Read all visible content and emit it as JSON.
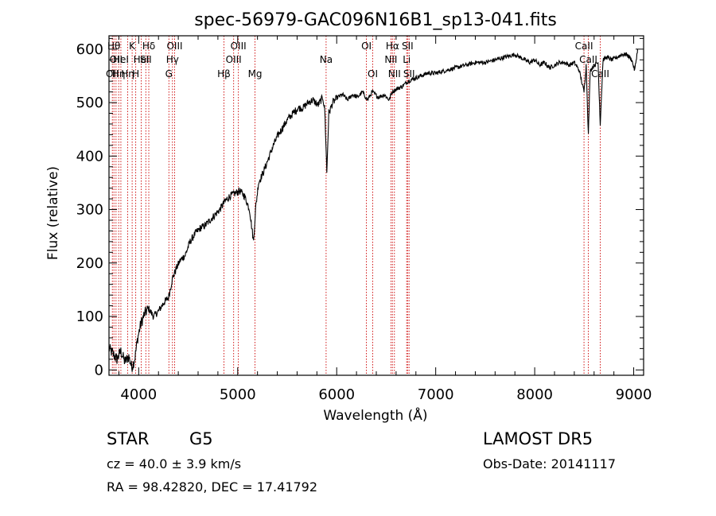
{
  "chart_data": {
    "type": "line",
    "title": "spec-56979-GAC096N16B1_sp13-041.fits",
    "xlabel": "Wavelength (Å)",
    "ylabel": "Flux (relative)",
    "xlim": [
      3700,
      9100
    ],
    "ylim": [
      -10,
      625
    ],
    "xticks": [
      4000,
      5000,
      6000,
      7000,
      8000,
      9000
    ],
    "yticks": [
      0,
      100,
      200,
      300,
      400,
      500,
      600
    ],
    "grid": false,
    "line_color": "#000000",
    "marker_color": "#cc0000",
    "series": [
      {
        "x": [
          3700,
          3740,
          3780,
          3820,
          3860,
          3900,
          3930,
          3960,
          3990,
          4020,
          4060,
          4100,
          4150,
          4200,
          4250,
          4300,
          4340,
          4380,
          4420,
          4470,
          4520,
          4570,
          4620,
          4670,
          4720,
          4770,
          4820,
          4870,
          4920,
          4970,
          5020,
          5070,
          5120,
          5160,
          5180,
          5210,
          5260,
          5310,
          5360,
          5410,
          5460,
          5510,
          5560,
          5610,
          5660,
          5710,
          5760,
          5810,
          5860,
          5880,
          5890,
          5900,
          5920,
          5960,
          6010,
          6060,
          6110,
          6160,
          6210,
          6260,
          6310,
          6360,
          6420,
          6480,
          6530,
          6560,
          6600,
          6660,
          6720,
          6780,
          6850,
          6920,
          7000,
          7100,
          7200,
          7300,
          7400,
          7500,
          7600,
          7700,
          7800,
          7850,
          7900,
          7950,
          8000,
          8050,
          8100,
          8150,
          8200,
          8250,
          8300,
          8350,
          8400,
          8450,
          8498,
          8520,
          8542,
          8560,
          8600,
          8640,
          8662,
          8690,
          8730,
          8780,
          8830,
          8880,
          8930,
          8980,
          9010,
          9040
        ],
        "y": [
          40,
          30,
          20,
          35,
          15,
          25,
          5,
          20,
          60,
          85,
          105,
          115,
          100,
          110,
          125,
          135,
          170,
          190,
          205,
          215,
          240,
          255,
          265,
          270,
          280,
          290,
          300,
          315,
          325,
          330,
          335,
          325,
          300,
          240,
          300,
          350,
          370,
          395,
          420,
          440,
          455,
          470,
          480,
          490,
          490,
          500,
          505,
          495,
          510,
          485,
          430,
          370,
          480,
          500,
          510,
          515,
          505,
          515,
          510,
          520,
          505,
          520,
          510,
          515,
          505,
          520,
          525,
          530,
          540,
          545,
          550,
          555,
          555,
          560,
          565,
          570,
          575,
          575,
          580,
          585,
          590,
          585,
          580,
          575,
          580,
          570,
          575,
          565,
          570,
          575,
          575,
          570,
          575,
          560,
          520,
          570,
          440,
          560,
          570,
          575,
          460,
          580,
          585,
          580,
          585,
          590,
          590,
          580,
          560,
          600
        ]
      }
    ],
    "lines": [
      {
        "x": 3734,
        "label": "OII",
        "row": 2
      },
      {
        "x": 3750,
        "label": "Hθ",
        "row": 0
      },
      {
        "x": 3771,
        "label": "OII",
        "row": 1
      },
      {
        "x": 3798,
        "label": "Hη",
        "row": 2
      },
      {
        "x": 3820,
        "label": "HeI",
        "row": 1
      },
      {
        "x": 3889,
        "label": "Hη",
        "row": 2
      },
      {
        "x": 3934,
        "label": "K",
        "row": 0
      },
      {
        "x": 3970,
        "label": "H",
        "row": 2
      },
      {
        "x": 4026,
        "label": "HeI",
        "row": 1
      },
      {
        "x": 4072,
        "label": "SII",
        "row": 1
      },
      {
        "x": 4102,
        "label": "Hδ",
        "row": 0
      },
      {
        "x": 4305,
        "label": "G",
        "row": 2
      },
      {
        "x": 4341,
        "label": "Hγ",
        "row": 1
      },
      {
        "x": 4363,
        "label": "OIII",
        "row": 0
      },
      {
        "x": 4861,
        "label": "Hβ",
        "row": 2
      },
      {
        "x": 4959,
        "label": "OIII",
        "row": 1
      },
      {
        "x": 5007,
        "label": "OIII",
        "row": 0
      },
      {
        "x": 5175,
        "label": "Mg",
        "row": 2
      },
      {
        "x": 5893,
        "label": "Na",
        "row": 1
      },
      {
        "x": 6300,
        "label": "OI",
        "row": 0
      },
      {
        "x": 6364,
        "label": "OI",
        "row": 2
      },
      {
        "x": 6548,
        "label": "NII",
        "row": 1
      },
      {
        "x": 6563,
        "label": "Hα",
        "row": 0
      },
      {
        "x": 6583,
        "label": "NII",
        "row": 2
      },
      {
        "x": 6707,
        "label": "Li",
        "row": 1
      },
      {
        "x": 6716,
        "label": "SII",
        "row": 0
      },
      {
        "x": 6731,
        "label": "SII",
        "row": 2
      },
      {
        "x": 8498,
        "label": "CaII",
        "row": 0
      },
      {
        "x": 8542,
        "label": "CaII",
        "row": 1
      },
      {
        "x": 8662,
        "label": "CaII",
        "row": 2
      }
    ]
  },
  "info": {
    "class": "STAR",
    "subclass": "G5",
    "survey": "LAMOST DR5",
    "cz": "cz = 40.0 ± 3.9 km/s",
    "obs_date": "Obs-Date: 20141117",
    "coords": "RA =  98.42820, DEC =  17.41792"
  }
}
